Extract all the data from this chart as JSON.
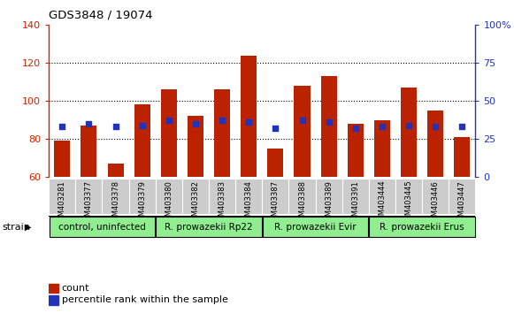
{
  "title": "GDS3848 / 19074",
  "samples": [
    "GSM403281",
    "GSM403377",
    "GSM403378",
    "GSM403379",
    "GSM403380",
    "GSM403382",
    "GSM403383",
    "GSM403384",
    "GSM403387",
    "GSM403388",
    "GSM403389",
    "GSM403391",
    "GSM403444",
    "GSM403445",
    "GSM403446",
    "GSM403447"
  ],
  "counts": [
    79,
    87,
    67,
    98,
    106,
    92,
    106,
    124,
    75,
    108,
    113,
    88,
    90,
    107,
    95,
    81
  ],
  "percentiles": [
    33,
    35,
    33,
    34,
    37,
    35,
    37,
    36,
    32,
    37,
    36,
    32,
    33,
    34,
    33,
    33
  ],
  "ylim_left": [
    60,
    140
  ],
  "ylim_right": [
    0,
    100
  ],
  "yticks_left": [
    60,
    80,
    100,
    120,
    140
  ],
  "yticks_right": [
    0,
    25,
    50,
    75,
    100
  ],
  "bar_color": "#bb2200",
  "dot_color": "#2233bb",
  "groups": [
    {
      "label": "control, uninfected",
      "indices": [
        0,
        3
      ]
    },
    {
      "label": "R. prowazekii Rp22",
      "indices": [
        4,
        7
      ]
    },
    {
      "label": "R. prowazekii Evir",
      "indices": [
        8,
        11
      ]
    },
    {
      "label": "R. prowazekii Erus",
      "indices": [
        12,
        15
      ]
    }
  ],
  "group_color": "#90ee90",
  "legend_count_label": "count",
  "legend_pct_label": "percentile rank within the sample",
  "strain_label": "strain",
  "left_axis_color": "#cc2200",
  "right_axis_color": "#2233bb",
  "xlabel_bg_color": "#cccccc",
  "grid_color": "#000000"
}
